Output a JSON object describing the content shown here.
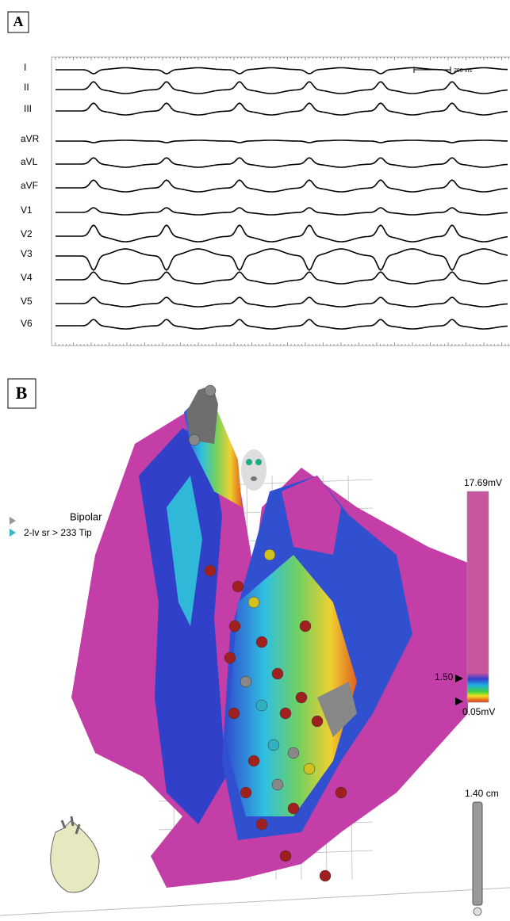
{
  "panel_a": {
    "label": "A",
    "leads": [
      "I",
      "II",
      "III",
      "aVR",
      "aVL",
      "aVF",
      "V1",
      "V2",
      "V3",
      "V4",
      "V5",
      "V6"
    ],
    "scale_label": "200 ms"
  },
  "panel_b": {
    "label": "B",
    "map_mode": "Bipolar",
    "catheter": "2-lv sr > 233 Tip",
    "color_bar": {
      "max": "17.69mV",
      "threshold": "1.50",
      "min": "0.05mV"
    },
    "scale": "1.40 cm"
  }
}
